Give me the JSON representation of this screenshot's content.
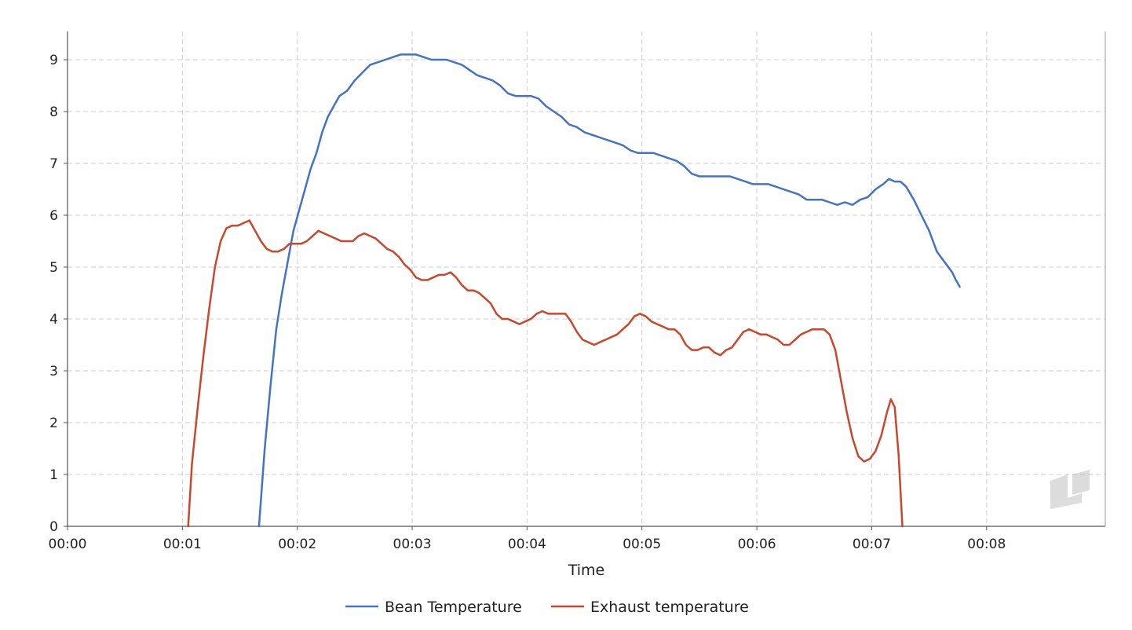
{
  "chart_data": {
    "type": "line",
    "title": "",
    "xlabel": "Time",
    "ylabel": "",
    "x_unit": "seconds (mm:ss)",
    "xlim": [
      0,
      542
    ],
    "ylim": [
      0,
      9.5
    ],
    "x_ticks": [
      "00:00",
      "00:01",
      "00:02",
      "00:03",
      "00:04",
      "00:05",
      "00:06",
      "00:07",
      "00:08"
    ],
    "x_tick_values": [
      0,
      60,
      120,
      180,
      240,
      300,
      360,
      420,
      480
    ],
    "y_ticks": [
      "0",
      "1",
      "2",
      "3",
      "4",
      "5",
      "6",
      "7",
      "8",
      "9"
    ],
    "y_tick_values": [
      0,
      1,
      2,
      3,
      4,
      5,
      6,
      7,
      8,
      9
    ],
    "grid": true,
    "legend_position": "bottom-center",
    "series": [
      {
        "name": "Bean Temperature",
        "color": "#4472c4",
        "points": [
          [
            100,
            0
          ],
          [
            103,
            1.5
          ],
          [
            106,
            2.7
          ],
          [
            109,
            3.8
          ],
          [
            112,
            4.5
          ],
          [
            115,
            5.1
          ],
          [
            118,
            5.7
          ],
          [
            121,
            6.1
          ],
          [
            124,
            6.5
          ],
          [
            127,
            6.9
          ],
          [
            130,
            7.2
          ],
          [
            133,
            7.6
          ],
          [
            136,
            7.9
          ],
          [
            139,
            8.1
          ],
          [
            142,
            8.3
          ],
          [
            146,
            8.4
          ],
          [
            150,
            8.6
          ],
          [
            154,
            8.75
          ],
          [
            158,
            8.9
          ],
          [
            162,
            8.95
          ],
          [
            166,
            9.0
          ],
          [
            170,
            9.05
          ],
          [
            174,
            9.1
          ],
          [
            178,
            9.1
          ],
          [
            182,
            9.1
          ],
          [
            186,
            9.05
          ],
          [
            190,
            9.0
          ],
          [
            194,
            9.0
          ],
          [
            198,
            9.0
          ],
          [
            202,
            8.95
          ],
          [
            206,
            8.9
          ],
          [
            210,
            8.8
          ],
          [
            214,
            8.7
          ],
          [
            218,
            8.65
          ],
          [
            222,
            8.6
          ],
          [
            226,
            8.5
          ],
          [
            230,
            8.35
          ],
          [
            234,
            8.3
          ],
          [
            238,
            8.3
          ],
          [
            242,
            8.3
          ],
          [
            246,
            8.25
          ],
          [
            250,
            8.1
          ],
          [
            254,
            8.0
          ],
          [
            258,
            7.9
          ],
          [
            262,
            7.75
          ],
          [
            266,
            7.7
          ],
          [
            270,
            7.6
          ],
          [
            274,
            7.55
          ],
          [
            278,
            7.5
          ],
          [
            282,
            7.45
          ],
          [
            286,
            7.4
          ],
          [
            290,
            7.35
          ],
          [
            294,
            7.25
          ],
          [
            298,
            7.2
          ],
          [
            302,
            7.2
          ],
          [
            306,
            7.2
          ],
          [
            310,
            7.15
          ],
          [
            314,
            7.1
          ],
          [
            318,
            7.05
          ],
          [
            322,
            6.95
          ],
          [
            326,
            6.8
          ],
          [
            330,
            6.75
          ],
          [
            334,
            6.75
          ],
          [
            338,
            6.75
          ],
          [
            342,
            6.75
          ],
          [
            346,
            6.75
          ],
          [
            350,
            6.7
          ],
          [
            354,
            6.65
          ],
          [
            358,
            6.6
          ],
          [
            362,
            6.6
          ],
          [
            366,
            6.6
          ],
          [
            370,
            6.55
          ],
          [
            374,
            6.5
          ],
          [
            378,
            6.45
          ],
          [
            382,
            6.4
          ],
          [
            386,
            6.3
          ],
          [
            390,
            6.3
          ],
          [
            394,
            6.3
          ],
          [
            398,
            6.25
          ],
          [
            402,
            6.2
          ],
          [
            406,
            6.25
          ],
          [
            410,
            6.2
          ],
          [
            414,
            6.3
          ],
          [
            418,
            6.35
          ],
          [
            422,
            6.5
          ],
          [
            426,
            6.6
          ],
          [
            429,
            6.7
          ],
          [
            432,
            6.65
          ],
          [
            435,
            6.65
          ],
          [
            438,
            6.55
          ],
          [
            442,
            6.3
          ],
          [
            446,
            6.0
          ],
          [
            450,
            5.7
          ],
          [
            454,
            5.3
          ],
          [
            458,
            5.1
          ],
          [
            462,
            4.9
          ],
          [
            464,
            4.75
          ],
          [
            466,
            4.62
          ]
        ]
      },
      {
        "name": "Exhaust temperature",
        "color": "#c9472b",
        "points": [
          [
            63,
            0
          ],
          [
            65,
            1.2
          ],
          [
            68,
            2.3
          ],
          [
            71,
            3.3
          ],
          [
            74,
            4.2
          ],
          [
            77,
            5.0
          ],
          [
            80,
            5.5
          ],
          [
            83,
            5.75
          ],
          [
            86,
            5.8
          ],
          [
            89,
            5.8
          ],
          [
            92,
            5.85
          ],
          [
            95,
            5.9
          ],
          [
            98,
            5.7
          ],
          [
            101,
            5.5
          ],
          [
            104,
            5.35
          ],
          [
            107,
            5.3
          ],
          [
            110,
            5.3
          ],
          [
            113,
            5.35
          ],
          [
            116,
            5.45
          ],
          [
            119,
            5.45
          ],
          [
            122,
            5.45
          ],
          [
            125,
            5.5
          ],
          [
            128,
            5.6
          ],
          [
            131,
            5.7
          ],
          [
            134,
            5.65
          ],
          [
            137,
            5.6
          ],
          [
            140,
            5.55
          ],
          [
            143,
            5.5
          ],
          [
            146,
            5.5
          ],
          [
            149,
            5.5
          ],
          [
            152,
            5.6
          ],
          [
            155,
            5.65
          ],
          [
            158,
            5.6
          ],
          [
            161,
            5.55
          ],
          [
            164,
            5.45
          ],
          [
            167,
            5.35
          ],
          [
            170,
            5.3
          ],
          [
            173,
            5.2
          ],
          [
            176,
            5.05
          ],
          [
            179,
            4.95
          ],
          [
            182,
            4.8
          ],
          [
            185,
            4.75
          ],
          [
            188,
            4.75
          ],
          [
            191,
            4.8
          ],
          [
            194,
            4.85
          ],
          [
            197,
            4.85
          ],
          [
            200,
            4.9
          ],
          [
            203,
            4.8
          ],
          [
            206,
            4.65
          ],
          [
            209,
            4.55
          ],
          [
            212,
            4.55
          ],
          [
            215,
            4.5
          ],
          [
            218,
            4.4
          ],
          [
            221,
            4.3
          ],
          [
            224,
            4.1
          ],
          [
            227,
            4.0
          ],
          [
            230,
            4.0
          ],
          [
            233,
            3.95
          ],
          [
            236,
            3.9
          ],
          [
            239,
            3.95
          ],
          [
            242,
            4.0
          ],
          [
            245,
            4.1
          ],
          [
            248,
            4.15
          ],
          [
            251,
            4.1
          ],
          [
            254,
            4.1
          ],
          [
            257,
            4.1
          ],
          [
            260,
            4.1
          ],
          [
            263,
            3.95
          ],
          [
            266,
            3.75
          ],
          [
            269,
            3.6
          ],
          [
            272,
            3.55
          ],
          [
            275,
            3.5
          ],
          [
            278,
            3.55
          ],
          [
            281,
            3.6
          ],
          [
            284,
            3.65
          ],
          [
            287,
            3.7
          ],
          [
            290,
            3.8
          ],
          [
            293,
            3.9
          ],
          [
            296,
            4.05
          ],
          [
            299,
            4.1
          ],
          [
            302,
            4.05
          ],
          [
            305,
            3.95
          ],
          [
            308,
            3.9
          ],
          [
            311,
            3.85
          ],
          [
            314,
            3.8
          ],
          [
            317,
            3.8
          ],
          [
            320,
            3.7
          ],
          [
            323,
            3.5
          ],
          [
            326,
            3.4
          ],
          [
            329,
            3.4
          ],
          [
            332,
            3.45
          ],
          [
            335,
            3.45
          ],
          [
            338,
            3.35
          ],
          [
            341,
            3.3
          ],
          [
            344,
            3.4
          ],
          [
            347,
            3.45
          ],
          [
            350,
            3.6
          ],
          [
            353,
            3.75
          ],
          [
            356,
            3.8
          ],
          [
            359,
            3.75
          ],
          [
            362,
            3.7
          ],
          [
            365,
            3.7
          ],
          [
            368,
            3.65
          ],
          [
            371,
            3.6
          ],
          [
            374,
            3.5
          ],
          [
            377,
            3.5
          ],
          [
            380,
            3.6
          ],
          [
            383,
            3.7
          ],
          [
            386,
            3.75
          ],
          [
            389,
            3.8
          ],
          [
            392,
            3.8
          ],
          [
            395,
            3.8
          ],
          [
            398,
            3.7
          ],
          [
            401,
            3.4
          ],
          [
            404,
            2.8
          ],
          [
            407,
            2.2
          ],
          [
            410,
            1.7
          ],
          [
            413,
            1.35
          ],
          [
            416,
            1.25
          ],
          [
            419,
            1.3
          ],
          [
            422,
            1.45
          ],
          [
            425,
            1.75
          ],
          [
            428,
            2.2
          ],
          [
            430,
            2.45
          ],
          [
            432,
            2.3
          ],
          [
            434,
            1.4
          ],
          [
            436,
            0
          ]
        ]
      }
    ]
  }
}
